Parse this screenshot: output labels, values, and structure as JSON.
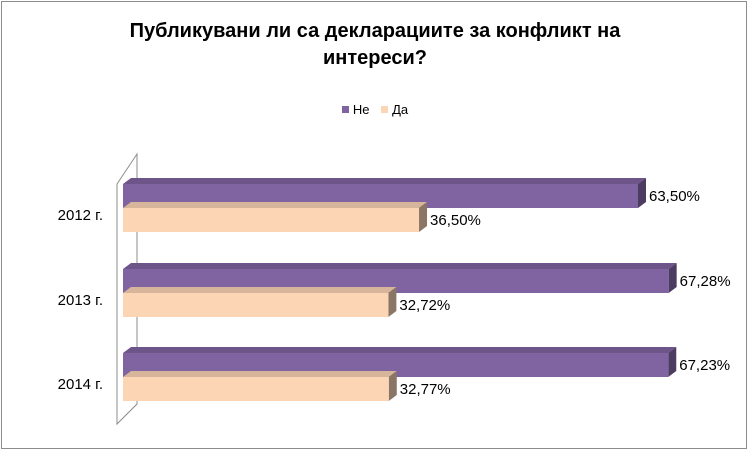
{
  "chart_data": {
    "type": "bar",
    "orientation": "horizontal",
    "title_lines": [
      "Публикувани ли са декларациите за конфликт на",
      "интереси?"
    ],
    "categories": [
      "2012 г.",
      "2013 г.",
      "2014 г."
    ],
    "series": [
      {
        "name": "Не",
        "values": [
          63.5,
          67.28,
          67.23
        ],
        "labels": [
          "63,50%",
          "67,28%",
          "67,23%"
        ],
        "color": "#8064a2"
      },
      {
        "name": "Да",
        "values": [
          36.5,
          32.72,
          32.77
        ],
        "labels": [
          "36,50%",
          "32,72%",
          "32,77%"
        ],
        "color": "#fcd5b5"
      }
    ],
    "xlim": [
      0,
      80
    ],
    "legend_position": "top",
    "grid": false,
    "style": "3d"
  }
}
